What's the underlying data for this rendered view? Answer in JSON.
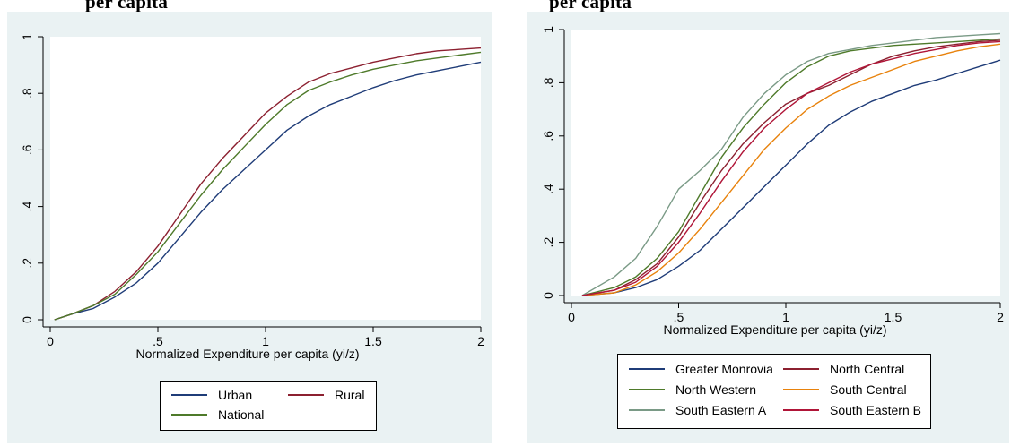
{
  "caption": {
    "left_fragment": "per capita",
    "right_fragment": "per capita"
  },
  "chart_data": [
    {
      "type": "line",
      "title": "",
      "xlabel": "Normalized Expenditure per capita (yi/z)",
      "ylabel": "",
      "xlim": [
        0,
        2
      ],
      "ylim": [
        0,
        1
      ],
      "xticks": [
        "0",
        ".5",
        "1",
        "1.5",
        "2"
      ],
      "yticks": [
        "0",
        ".2",
        ".4",
        ".6",
        ".8",
        "1"
      ],
      "grid": false,
      "legend_position": "bottom",
      "series": [
        {
          "name": "Urban",
          "color": "#1f3c78",
          "x": [
            0.02,
            0.1,
            0.2,
            0.3,
            0.4,
            0.5,
            0.6,
            0.7,
            0.8,
            0.9,
            1.0,
            1.1,
            1.2,
            1.3,
            1.4,
            1.5,
            1.6,
            1.7,
            1.8,
            1.9,
            2.0
          ],
          "y": [
            0.0,
            0.02,
            0.04,
            0.08,
            0.13,
            0.2,
            0.29,
            0.38,
            0.46,
            0.53,
            0.6,
            0.67,
            0.72,
            0.76,
            0.79,
            0.82,
            0.845,
            0.865,
            0.88,
            0.895,
            0.91
          ]
        },
        {
          "name": "Rural",
          "color": "#8c2030",
          "x": [
            0.02,
            0.1,
            0.2,
            0.3,
            0.4,
            0.5,
            0.6,
            0.7,
            0.8,
            0.9,
            1.0,
            1.1,
            1.2,
            1.3,
            1.4,
            1.5,
            1.6,
            1.7,
            1.8,
            1.9,
            2.0
          ],
          "y": [
            0.0,
            0.02,
            0.05,
            0.1,
            0.17,
            0.26,
            0.37,
            0.48,
            0.57,
            0.65,
            0.73,
            0.79,
            0.84,
            0.87,
            0.89,
            0.91,
            0.925,
            0.94,
            0.95,
            0.955,
            0.96
          ]
        },
        {
          "name": "National",
          "color": "#4e7a2a",
          "x": [
            0.02,
            0.1,
            0.2,
            0.3,
            0.4,
            0.5,
            0.6,
            0.7,
            0.8,
            0.9,
            1.0,
            1.1,
            1.2,
            1.3,
            1.4,
            1.5,
            1.6,
            1.7,
            1.8,
            1.9,
            2.0
          ],
          "y": [
            0.0,
            0.02,
            0.05,
            0.09,
            0.16,
            0.24,
            0.34,
            0.44,
            0.53,
            0.61,
            0.69,
            0.76,
            0.81,
            0.84,
            0.865,
            0.885,
            0.9,
            0.915,
            0.925,
            0.935,
            0.945
          ]
        }
      ]
    },
    {
      "type": "line",
      "title": "",
      "xlabel": "Normalized Expenditure per capita (yi/z)",
      "ylabel": "",
      "xlim": [
        0,
        2
      ],
      "ylim": [
        0,
        1
      ],
      "xticks": [
        "0",
        ".5",
        "1",
        "1.5",
        "2"
      ],
      "yticks": [
        "0",
        ".2",
        ".4",
        ".6",
        ".8",
        "1"
      ],
      "grid": false,
      "legend_position": "bottom",
      "series": [
        {
          "name": "Greater Monrovia",
          "color": "#1f3c78",
          "x": [
            0.05,
            0.2,
            0.3,
            0.4,
            0.5,
            0.6,
            0.7,
            0.8,
            0.9,
            1.0,
            1.1,
            1.2,
            1.3,
            1.4,
            1.5,
            1.6,
            1.7,
            1.8,
            1.9,
            2.0
          ],
          "y": [
            0.0,
            0.01,
            0.03,
            0.06,
            0.11,
            0.17,
            0.25,
            0.33,
            0.41,
            0.49,
            0.57,
            0.64,
            0.69,
            0.73,
            0.76,
            0.79,
            0.81,
            0.835,
            0.86,
            0.885
          ]
        },
        {
          "name": "North Central",
          "color": "#8c2030",
          "x": [
            0.05,
            0.2,
            0.3,
            0.4,
            0.5,
            0.6,
            0.7,
            0.8,
            0.9,
            1.0,
            1.1,
            1.2,
            1.3,
            1.4,
            1.5,
            1.6,
            1.7,
            1.8,
            1.9,
            2.0
          ],
          "y": [
            0.0,
            0.02,
            0.06,
            0.12,
            0.22,
            0.35,
            0.47,
            0.57,
            0.65,
            0.72,
            0.76,
            0.79,
            0.83,
            0.87,
            0.9,
            0.92,
            0.935,
            0.945,
            0.955,
            0.96
          ]
        },
        {
          "name": "North Western",
          "color": "#4e7a2a",
          "x": [
            0.05,
            0.2,
            0.3,
            0.4,
            0.5,
            0.6,
            0.7,
            0.8,
            0.9,
            1.0,
            1.1,
            1.2,
            1.3,
            1.4,
            1.5,
            1.6,
            1.7,
            1.8,
            1.9,
            2.0
          ],
          "y": [
            0.0,
            0.03,
            0.07,
            0.14,
            0.24,
            0.38,
            0.52,
            0.63,
            0.72,
            0.8,
            0.86,
            0.9,
            0.92,
            0.93,
            0.94,
            0.945,
            0.95,
            0.955,
            0.96,
            0.965
          ]
        },
        {
          "name": "South Central",
          "color": "#e8820c",
          "x": [
            0.05,
            0.2,
            0.3,
            0.4,
            0.5,
            0.6,
            0.7,
            0.8,
            0.9,
            1.0,
            1.1,
            1.2,
            1.3,
            1.4,
            1.5,
            1.6,
            1.7,
            1.8,
            1.9,
            2.0
          ],
          "y": [
            0.0,
            0.01,
            0.04,
            0.09,
            0.16,
            0.25,
            0.35,
            0.45,
            0.55,
            0.63,
            0.7,
            0.75,
            0.79,
            0.82,
            0.85,
            0.88,
            0.9,
            0.92,
            0.935,
            0.945
          ]
        },
        {
          "name": "South Eastern A",
          "color": "#7a9a86",
          "x": [
            0.05,
            0.2,
            0.3,
            0.4,
            0.5,
            0.6,
            0.7,
            0.8,
            0.9,
            1.0,
            1.1,
            1.2,
            1.3,
            1.4,
            1.5,
            1.6,
            1.7,
            1.8,
            1.9,
            2.0
          ],
          "y": [
            0.0,
            0.07,
            0.14,
            0.26,
            0.4,
            0.47,
            0.55,
            0.67,
            0.76,
            0.83,
            0.88,
            0.91,
            0.925,
            0.94,
            0.95,
            0.96,
            0.97,
            0.975,
            0.98,
            0.985
          ]
        },
        {
          "name": "South Eastern B",
          "color": "#b01538",
          "x": [
            0.05,
            0.2,
            0.3,
            0.4,
            0.5,
            0.6,
            0.7,
            0.8,
            0.9,
            1.0,
            1.1,
            1.2,
            1.3,
            1.4,
            1.5,
            1.6,
            1.7,
            1.8,
            1.9,
            2.0
          ],
          "y": [
            0.0,
            0.02,
            0.05,
            0.11,
            0.2,
            0.31,
            0.43,
            0.54,
            0.63,
            0.7,
            0.76,
            0.8,
            0.84,
            0.87,
            0.89,
            0.91,
            0.925,
            0.94,
            0.95,
            0.955
          ]
        }
      ]
    }
  ]
}
